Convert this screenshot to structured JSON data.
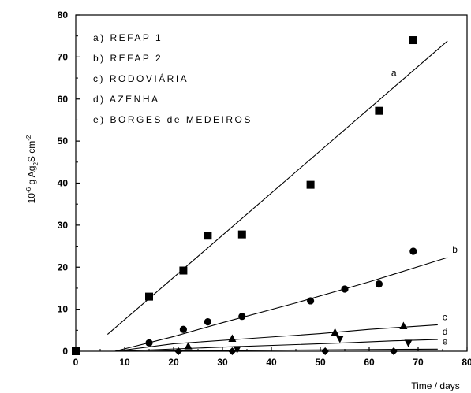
{
  "chart_data": {
    "type": "scatter",
    "xlabel": "Time / days",
    "ylabel_parts": [
      "10",
      "-6",
      "g  Ag",
      "2",
      "S  cm",
      "-2"
    ],
    "xlim": [
      0,
      80
    ],
    "ylim": [
      0,
      80
    ],
    "xticks": [
      0,
      10,
      20,
      30,
      40,
      50,
      60,
      70,
      80
    ],
    "yticks": [
      0,
      10,
      20,
      30,
      40,
      50,
      60,
      70,
      80
    ],
    "grid": false,
    "legend_position": "top-left",
    "series": [
      {
        "legend": "a)  REFAP 1",
        "curve_label": "a",
        "marker": "square",
        "points": [
          [
            0,
            0
          ],
          [
            15,
            13
          ],
          [
            22,
            19.2
          ],
          [
            27,
            27.5
          ],
          [
            34,
            27.8
          ],
          [
            48,
            39.6
          ],
          [
            62,
            57.2
          ],
          [
            69,
            74
          ]
        ],
        "fit": [
          [
            6.5,
            4
          ],
          [
            76,
            73.8
          ]
        ]
      },
      {
        "legend": "b)  REFAP 2",
        "curve_label": "b",
        "marker": "circle",
        "points": [
          [
            15,
            2
          ],
          [
            22,
            5.2
          ],
          [
            27,
            7
          ],
          [
            34,
            8.3
          ],
          [
            48,
            12
          ],
          [
            55,
            14.8
          ],
          [
            62,
            16
          ],
          [
            69,
            23.8
          ]
        ],
        "fit": [
          [
            8,
            0
          ],
          [
            20,
            3.5
          ],
          [
            30,
            6.8
          ],
          [
            45,
            11.5
          ],
          [
            60,
            16.5
          ],
          [
            76,
            22.3
          ]
        ]
      },
      {
        "legend": "c)  RODOVIÁRIA",
        "curve_label": "c",
        "marker": "triangle-up",
        "points": [
          [
            23,
            1.2
          ],
          [
            32,
            3
          ],
          [
            53,
            4.5
          ],
          [
            67,
            6
          ]
        ],
        "fit": [
          [
            8,
            0
          ],
          [
            20,
            1.8
          ],
          [
            35,
            3
          ],
          [
            50,
            4.2
          ],
          [
            60,
            5.2
          ],
          [
            74,
            6.3
          ]
        ]
      },
      {
        "legend": "d)  AZENHA",
        "curve_label": "d",
        "marker": "triangle-down",
        "points": [
          [
            33,
            0.5
          ],
          [
            54,
            3
          ],
          [
            68,
            2
          ]
        ],
        "fit": [
          [
            8,
            0
          ],
          [
            30,
            1
          ],
          [
            45,
            1.6
          ],
          [
            55,
            2
          ],
          [
            65,
            2.5
          ],
          [
            74,
            2.8
          ]
        ]
      },
      {
        "legend": "e)  BORGES de MEDEIROS",
        "curve_label": "e",
        "marker": "diamond",
        "points": [
          [
            21,
            0
          ],
          [
            32,
            0
          ],
          [
            51,
            0
          ],
          [
            65,
            0
          ]
        ],
        "fit": [
          [
            8,
            0
          ],
          [
            74,
            0.5
          ]
        ]
      }
    ],
    "origin_marker": [
      0,
      0
    ]
  }
}
